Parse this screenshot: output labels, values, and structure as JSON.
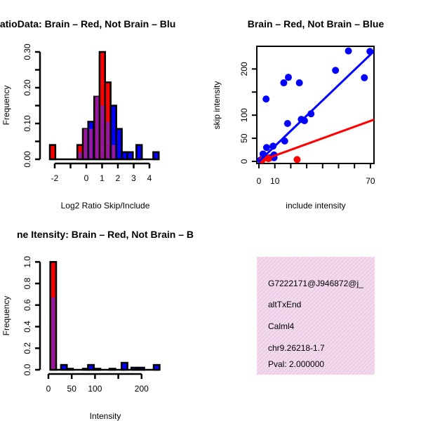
{
  "chart_data": [
    {
      "type": "bar",
      "title": "RatioData: Brain – Red, Not Brain – Blu",
      "xlabel": "Log2 Ratio Skip/Include",
      "ylabel": "Frequency",
      "xlim": [
        -2.5,
        4.6
      ],
      "ylim": [
        0,
        0.3
      ],
      "xticks": [
        "-2",
        "0",
        "1",
        "2",
        "3",
        "4"
      ],
      "xtick_values": [
        -2,
        -1,
        0,
        1,
        2,
        3,
        4
      ],
      "yticks": [
        "0.00",
        "0.10",
        "0.20",
        "0.30"
      ],
      "ytick_values": [
        0,
        0.05,
        0.1,
        0.15,
        0.2,
        0.25,
        0.3
      ],
      "bin_width": 0.35,
      "bin_starts": [
        -2.31,
        -0.57,
        -0.22,
        0.12,
        0.5,
        0.84,
        1.19,
        1.55,
        1.9,
        2.26,
        2.6,
        3.17,
        4.24
      ],
      "series": [
        {
          "name": "Brain",
          "color": "#ff0000",
          "values": [
            0.04,
            0.04,
            0.085,
            0.085,
            0.175,
            0.3,
            0.215,
            0.04,
            0,
            0,
            0,
            0,
            0
          ]
        },
        {
          "name": "Not Brain",
          "color": "#0000ff",
          "values": [
            0,
            0.02,
            0.085,
            0.105,
            0.175,
            0.15,
            0.105,
            0.15,
            0.085,
            0.02,
            0.02,
            0.04,
            0.02
          ]
        }
      ],
      "overlap_color": "#9a1aa8"
    },
    {
      "type": "scatter",
      "title": "Brain – Red, Not Brain – Blue",
      "xlabel": "include intensity",
      "ylabel": "skip intensity",
      "xlim": [
        0,
        72
      ],
      "ylim": [
        0,
        245
      ],
      "xticks": [
        "0",
        "10",
        "70"
      ],
      "xtick_values": [
        0,
        10,
        20,
        30,
        40,
        50,
        60,
        70
      ],
      "yticks": [
        "0",
        "50",
        "100",
        "200"
      ],
      "ytick_values": [
        0,
        50,
        100,
        150,
        200
      ],
      "series": [
        {
          "name": "Brain",
          "color": "#ff0000",
          "points": [
            [
              24,
              4
            ],
            [
              4.8,
              8
            ],
            [
              2,
              3
            ],
            [
              6,
              6
            ]
          ],
          "fit": {
            "slope": 1.25,
            "intercept": 0
          }
        },
        {
          "name": "Not Brain",
          "color": "#0000ff",
          "points": [
            [
              56.2,
              239
            ],
            [
              69.7,
              238
            ],
            [
              48.1,
              197
            ],
            [
              66.2,
              181
            ],
            [
              18.5,
              182
            ],
            [
              15.6,
              170
            ],
            [
              25.4,
              170
            ],
            [
              4.5,
              135
            ],
            [
              18,
              82
            ],
            [
              26.6,
              91
            ],
            [
              28.6,
              88
            ],
            [
              32.7,
              103
            ],
            [
              16.2,
              44
            ],
            [
              4.8,
              30
            ],
            [
              8.9,
              33
            ],
            [
              9.5,
              14
            ],
            [
              2.6,
              16
            ],
            [
              3,
              10
            ],
            [
              7,
              8
            ],
            [
              1,
              3
            ],
            [
              9.5,
              8
            ]
          ],
          "fit": {
            "slope": 3.3,
            "intercept": 0
          }
        }
      ]
    },
    {
      "type": "bar",
      "title": "ne Itensity: Brain – Red, Not Brain – B",
      "xlabel": "Intensity",
      "ylabel": "Frequency",
      "xlim": [
        0,
        240
      ],
      "ylim": [
        0,
        1.0
      ],
      "xticks": [
        "0",
        "50",
        "100",
        "200"
      ],
      "xtick_values": [
        0,
        50,
        100,
        150,
        200
      ],
      "yticks": [
        "0.0",
        "0.2",
        "0.4",
        "0.6",
        "0.8",
        "1.0"
      ],
      "ytick_values": [
        0,
        0.2,
        0.4,
        0.6,
        0.8,
        1.0
      ],
      "bin_width": 12.6,
      "bin_starts": [
        4,
        27,
        40,
        74,
        85,
        99,
        131,
        157,
        178,
        193,
        226
      ],
      "series": [
        {
          "name": "Brain",
          "color": "#ff0000",
          "values": [
            1.0,
            0,
            0,
            0,
            0,
            0,
            0,
            0,
            0,
            0,
            0
          ]
        },
        {
          "name": "Not Brain",
          "color": "#0000ff",
          "values": [
            0.67,
            0.045,
            0.01,
            0.01,
            0.045,
            0.01,
            0.01,
            0.065,
            0.02,
            0.02,
            0.045
          ]
        }
      ],
      "overlap_color": "#9a1aa8"
    }
  ],
  "info_panel": {
    "lines": [
      "G7222171@J946872@j_",
      "altTxEnd",
      "Calml4",
      "chr9.26218-1.7"
    ],
    "pval": "Pval: 2.000000",
    "pval_color": "#cc0000"
  }
}
